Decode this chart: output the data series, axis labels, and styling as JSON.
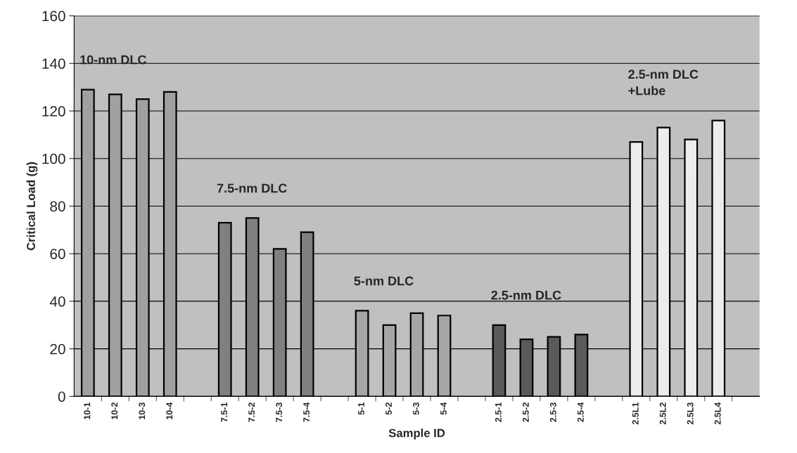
{
  "chart_data": {
    "type": "bar",
    "xlabel": "Sample ID",
    "ylabel": "Critical Load (g)",
    "categories": [
      "10-1",
      "10-2",
      "10-3",
      "10-4",
      null,
      "7.5-1",
      "7.5-2",
      "7.5-3",
      "7.5-4",
      null,
      "5-1",
      "5-2",
      "5-3",
      "5-4",
      null,
      "2.5-1",
      "2.5-2",
      "2.5-3",
      "2.5-4",
      null,
      "2.5L1",
      "2.5L2",
      "2.5L3",
      "2.5L4",
      null
    ],
    "values": [
      129,
      127,
      125,
      128,
      null,
      73,
      75,
      62,
      69,
      null,
      36,
      30,
      35,
      34,
      null,
      30,
      24,
      25,
      26,
      null,
      107,
      113,
      108,
      116,
      null
    ],
    "colors": [
      "#a0a0a0",
      "#a0a0a0",
      "#a0a0a0",
      "#a0a0a0",
      null,
      "#808080",
      "#808080",
      "#808080",
      "#808080",
      null,
      "#a6a6a6",
      "#a6a6a6",
      "#a6a6a6",
      "#a6a6a6",
      null,
      "#5a5a5a",
      "#5a5a5a",
      "#5a5a5a",
      "#5a5a5a",
      null,
      "#ececec",
      "#ececec",
      "#ececec",
      "#ececec",
      null
    ],
    "ylim": [
      0,
      160
    ],
    "yticks": [
      0,
      20,
      40,
      60,
      80,
      100,
      120,
      140,
      160
    ],
    "grid": "y",
    "annotations": [
      "10-nm DLC",
      "7.5-nm DLC",
      "5-nm DLC",
      "2.5-nm DLC",
      "2.5-nm DLC\n+Lube"
    ]
  }
}
